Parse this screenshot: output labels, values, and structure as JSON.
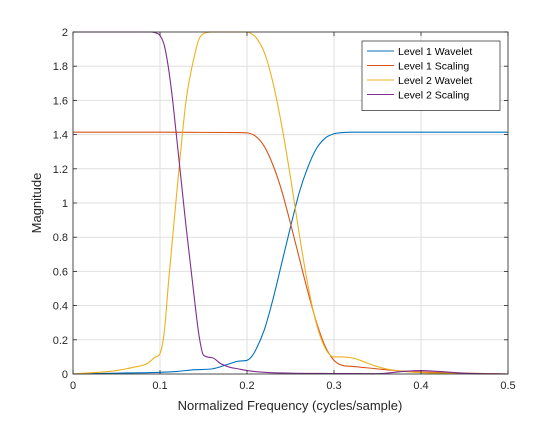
{
  "chart_data": {
    "type": "line",
    "title": "",
    "xlabel": "Normalized Frequency (cycles/sample)",
    "ylabel": "Magnitude",
    "xlim": [
      0,
      0.5
    ],
    "ylim": [
      0,
      2
    ],
    "xticks": [
      0,
      0.1,
      0.2,
      0.3,
      0.4,
      0.5
    ],
    "xtick_labels": [
      "0",
      "0.1",
      "0.2",
      "0.3",
      "0.4",
      "0.5"
    ],
    "yticks": [
      0,
      0.2,
      0.4,
      0.6,
      0.8,
      1,
      1.2,
      1.4,
      1.6,
      1.8,
      2
    ],
    "ytick_labels": [
      "0",
      "0.2",
      "0.4",
      "0.6",
      "0.8",
      "1",
      "1.2",
      "1.4",
      "1.6",
      "1.8",
      "2"
    ],
    "grid": true,
    "legend_position": "top-right",
    "series": [
      {
        "name": "Level 1 Wavelet",
        "color": "#0072BD",
        "x": [
          0,
          0.05,
          0.1,
          0.12,
          0.14,
          0.16,
          0.18,
          0.19,
          0.2,
          0.205,
          0.21,
          0.22,
          0.23,
          0.24,
          0.25,
          0.26,
          0.27,
          0.28,
          0.29,
          0.3,
          0.31,
          0.32,
          0.35,
          0.4,
          0.45,
          0.5
        ],
        "y": [
          0,
          0.005,
          0.01,
          0.015,
          0.025,
          0.03,
          0.06,
          0.075,
          0.08,
          0.1,
          0.14,
          0.26,
          0.44,
          0.65,
          0.86,
          1.06,
          1.21,
          1.32,
          1.38,
          1.405,
          1.412,
          1.414,
          1.414,
          1.414,
          1.414,
          1.414
        ]
      },
      {
        "name": "Level 1 Scaling",
        "color": "#D95319",
        "x": [
          0,
          0.05,
          0.1,
          0.15,
          0.19,
          0.2,
          0.21,
          0.22,
          0.23,
          0.24,
          0.25,
          0.26,
          0.27,
          0.28,
          0.29,
          0.3,
          0.31,
          0.32,
          0.33,
          0.35,
          0.37,
          0.4,
          0.45,
          0.5
        ],
        "y": [
          1.414,
          1.414,
          1.414,
          1.413,
          1.412,
          1.41,
          1.39,
          1.33,
          1.22,
          1.07,
          0.88,
          0.68,
          0.48,
          0.3,
          0.16,
          0.08,
          0.05,
          0.045,
          0.04,
          0.03,
          0.02,
          0.012,
          0.005,
          0
        ]
      },
      {
        "name": "Level 2 Wavelet",
        "color": "#EDB120",
        "x": [
          0,
          0.05,
          0.07,
          0.085,
          0.095,
          0.1,
          0.105,
          0.11,
          0.12,
          0.13,
          0.14,
          0.145,
          0.15,
          0.16,
          0.2,
          0.205,
          0.21,
          0.22,
          0.23,
          0.24,
          0.25,
          0.26,
          0.27,
          0.28,
          0.29,
          0.3,
          0.31,
          0.32,
          0.33,
          0.34,
          0.36,
          0.38,
          0.4,
          0.45,
          0.5
        ],
        "y": [
          0,
          0.02,
          0.04,
          0.06,
          0.1,
          0.12,
          0.25,
          0.55,
          1.1,
          1.6,
          1.87,
          1.96,
          1.99,
          2.0,
          2.0,
          1.99,
          1.97,
          1.88,
          1.7,
          1.45,
          1.15,
          0.82,
          0.52,
          0.29,
          0.15,
          0.1,
          0.1,
          0.095,
          0.08,
          0.06,
          0.03,
          0.015,
          0.008,
          0.003,
          0
        ]
      },
      {
        "name": "Level 2 Scaling",
        "color": "#7E2F8E",
        "x": [
          0,
          0.05,
          0.09,
          0.095,
          0.1,
          0.105,
          0.11,
          0.115,
          0.12,
          0.125,
          0.13,
          0.14,
          0.145,
          0.15,
          0.16,
          0.17,
          0.18,
          0.19,
          0.2,
          0.22,
          0.25,
          0.3,
          0.35,
          0.38,
          0.4,
          0.42,
          0.45,
          0.5
        ],
        "y": [
          2.0,
          2.0,
          2.0,
          1.995,
          1.98,
          1.92,
          1.78,
          1.58,
          1.34,
          1.1,
          0.86,
          0.42,
          0.22,
          0.11,
          0.095,
          0.06,
          0.04,
          0.03,
          0.02,
          0.01,
          0.005,
          0.003,
          0.002,
          0.015,
          0.02,
          0.015,
          0.005,
          0
        ]
      }
    ]
  }
}
